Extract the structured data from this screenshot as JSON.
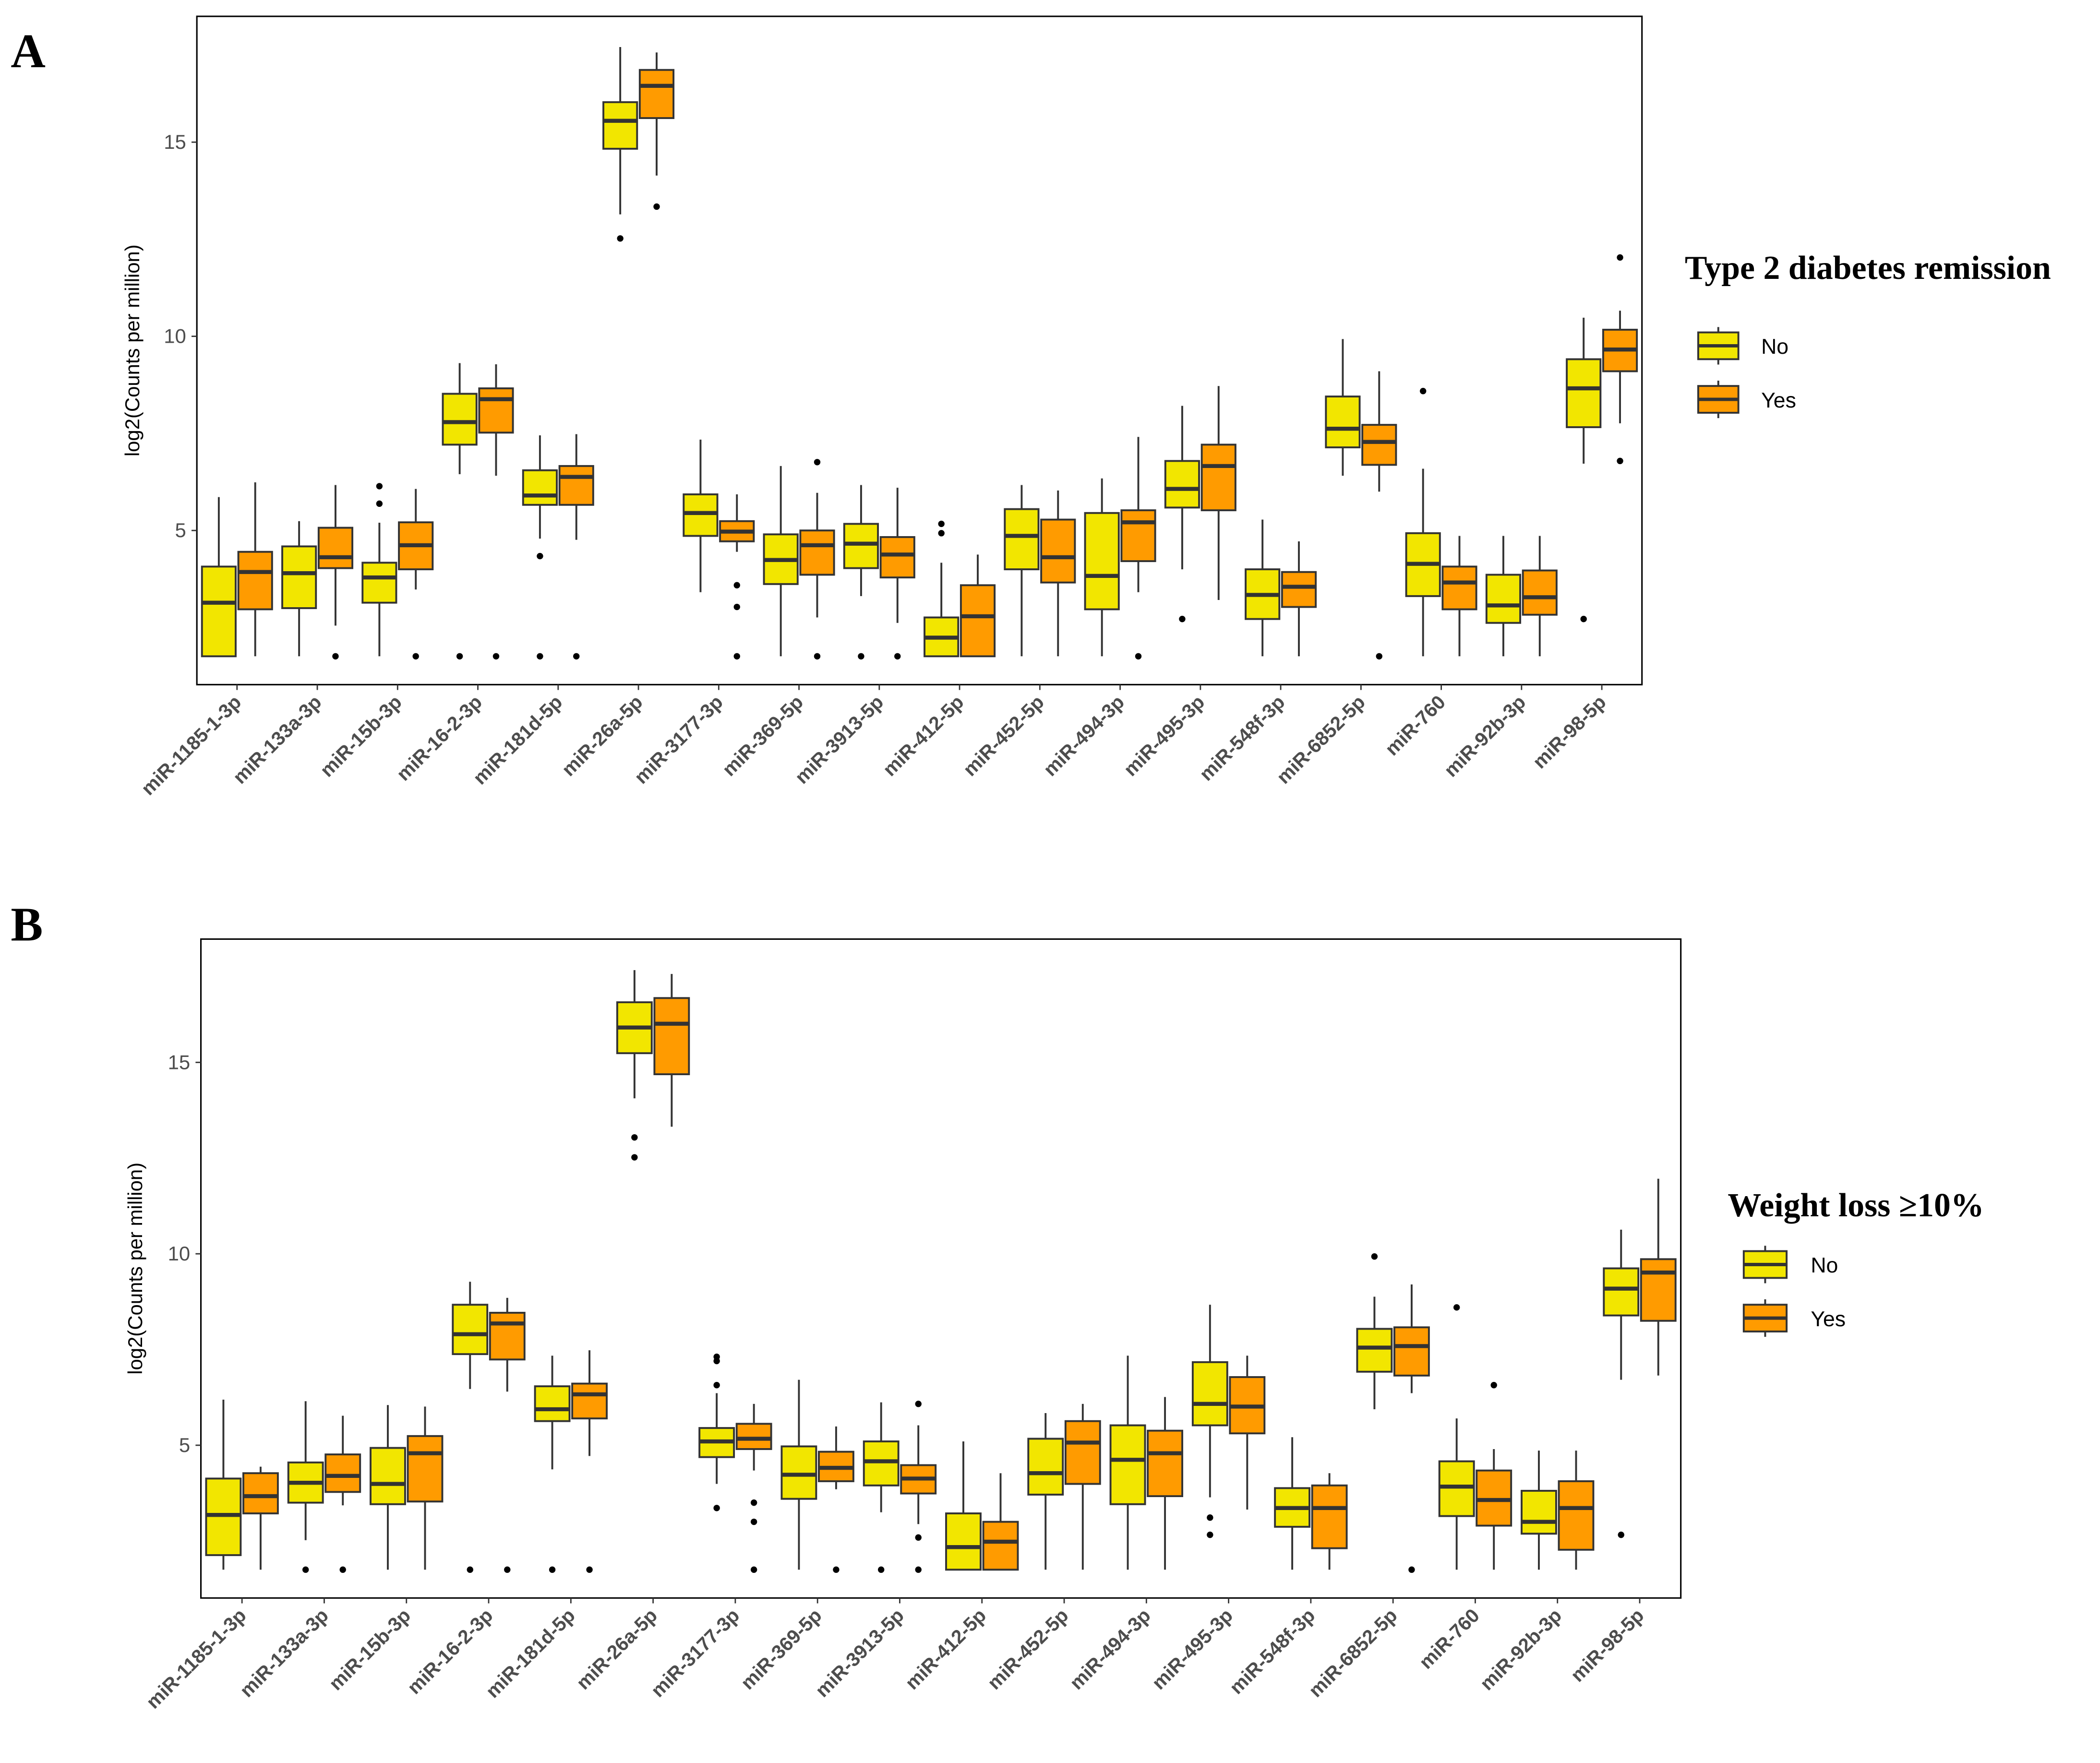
{
  "colors": {
    "No": "#F2E600",
    "Yes": "#FF9B00",
    "stroke": "#333333"
  },
  "chart_data": [
    {
      "type": "box",
      "panel_label": "A",
      "ylabel": "log2(Counts per million)",
      "yticks": [
        5,
        10,
        15
      ],
      "ylim": [
        1.03,
        18.24
      ],
      "legend": {
        "title": "Type 2 diabetes remission",
        "entries": [
          "No",
          "Yes"
        ],
        "position": "right"
      },
      "categories": [
        {
          "name": "miR-1185-1-3p",
          "No": {
            "min": 1.76,
            "q1": 1.76,
            "median": 3.14,
            "q3": 4.07,
            "max": 5.86,
            "outliers": []
          },
          "Yes": {
            "min": 1.76,
            "q1": 2.97,
            "median": 3.93,
            "q3": 4.45,
            "max": 6.24,
            "outliers": []
          }
        },
        {
          "name": "miR-133a-3p",
          "No": {
            "min": 1.76,
            "q1": 3.0,
            "median": 3.9,
            "q3": 4.59,
            "max": 5.24,
            "outliers": []
          },
          "Yes": {
            "min": 2.55,
            "q1": 4.03,
            "median": 4.31,
            "q3": 5.07,
            "max": 6.17,
            "outliers": [
              1.76
            ]
          }
        },
        {
          "name": "miR-15b-3p",
          "No": {
            "min": 1.76,
            "q1": 3.14,
            "median": 3.79,
            "q3": 4.17,
            "max": 5.2,
            "outliers": [
              6.14,
              5.69
            ]
          },
          "Yes": {
            "min": 3.48,
            "q1": 4.0,
            "median": 4.62,
            "q3": 5.21,
            "max": 6.07,
            "outliers": [
              1.76
            ]
          }
        },
        {
          "name": "miR-16-2-3p",
          "No": {
            "min": 6.45,
            "q1": 7.21,
            "median": 7.79,
            "q3": 8.52,
            "max": 9.31,
            "outliers": [
              1.76
            ]
          },
          "Yes": {
            "min": 6.41,
            "q1": 7.52,
            "median": 8.38,
            "q3": 8.66,
            "max": 9.28,
            "outliers": [
              1.76
            ]
          }
        },
        {
          "name": "miR-181d-5p",
          "No": {
            "min": 4.79,
            "q1": 5.66,
            "median": 5.9,
            "q3": 6.55,
            "max": 7.45,
            "outliers": [
              4.34,
              1.76
            ]
          },
          "Yes": {
            "min": 4.76,
            "q1": 5.66,
            "median": 6.38,
            "q3": 6.66,
            "max": 7.48,
            "outliers": [
              1.76
            ]
          }
        },
        {
          "name": "miR-26a-5p",
          "No": {
            "min": 13.14,
            "q1": 14.83,
            "median": 15.55,
            "q3": 16.03,
            "max": 17.45,
            "outliers": [
              12.52
            ]
          },
          "Yes": {
            "min": 14.14,
            "q1": 15.62,
            "median": 16.45,
            "q3": 16.86,
            "max": 17.31,
            "outliers": [
              13.34
            ]
          }
        },
        {
          "name": "miR-3177-3p",
          "No": {
            "min": 3.41,
            "q1": 4.86,
            "median": 5.45,
            "q3": 5.93,
            "max": 7.34,
            "outliers": []
          },
          "Yes": {
            "min": 4.45,
            "q1": 4.72,
            "median": 4.97,
            "q3": 5.24,
            "max": 5.93,
            "outliers": [
              3.59,
              3.03,
              1.76
            ]
          }
        },
        {
          "name": "miR-369-5p",
          "No": {
            "min": 1.76,
            "q1": 3.62,
            "median": 4.24,
            "q3": 4.9,
            "max": 6.66,
            "outliers": []
          },
          "Yes": {
            "min": 2.76,
            "q1": 3.86,
            "median": 4.62,
            "q3": 5.0,
            "max": 5.97,
            "outliers": [
              6.76,
              1.76
            ]
          }
        },
        {
          "name": "miR-3913-5p",
          "No": {
            "min": 3.31,
            "q1": 4.03,
            "median": 4.66,
            "q3": 5.17,
            "max": 6.17,
            "outliers": [
              1.76
            ]
          },
          "Yes": {
            "min": 2.62,
            "q1": 3.79,
            "median": 4.38,
            "q3": 4.83,
            "max": 6.1,
            "outliers": [
              1.76
            ]
          }
        },
        {
          "name": "miR-412-5p",
          "No": {
            "min": 1.76,
            "q1": 1.76,
            "median": 2.24,
            "q3": 2.76,
            "max": 4.17,
            "outliers": [
              5.17,
              4.93
            ]
          },
          "Yes": {
            "min": 1.76,
            "q1": 1.76,
            "median": 2.79,
            "q3": 3.59,
            "max": 4.38,
            "outliers": []
          }
        },
        {
          "name": "miR-452-5p",
          "No": {
            "min": 1.76,
            "q1": 4.0,
            "median": 4.86,
            "q3": 5.55,
            "max": 6.17,
            "outliers": []
          },
          "Yes": {
            "min": 1.76,
            "q1": 3.66,
            "median": 4.31,
            "q3": 5.28,
            "max": 6.03,
            "outliers": []
          }
        },
        {
          "name": "miR-494-3p",
          "No": {
            "min": 1.76,
            "q1": 2.97,
            "median": 3.83,
            "q3": 5.45,
            "max": 6.34,
            "outliers": []
          },
          "Yes": {
            "min": 3.41,
            "q1": 4.21,
            "median": 5.21,
            "q3": 5.52,
            "max": 7.41,
            "outliers": [
              1.76
            ]
          }
        },
        {
          "name": "miR-495-3p",
          "No": {
            "min": 4.0,
            "q1": 5.59,
            "median": 6.07,
            "q3": 6.79,
            "max": 8.21,
            "outliers": [
              2.72
            ]
          },
          "Yes": {
            "min": 3.21,
            "q1": 5.52,
            "median": 6.66,
            "q3": 7.21,
            "max": 8.72,
            "outliers": []
          }
        },
        {
          "name": "miR-548f-3p",
          "No": {
            "min": 1.76,
            "q1": 2.72,
            "median": 3.34,
            "q3": 4.0,
            "max": 5.28,
            "outliers": []
          },
          "Yes": {
            "min": 1.76,
            "q1": 3.03,
            "median": 3.55,
            "q3": 3.93,
            "max": 4.72,
            "outliers": []
          }
        },
        {
          "name": "miR-6852-5p",
          "No": {
            "min": 6.41,
            "q1": 7.14,
            "median": 7.62,
            "q3": 8.45,
            "max": 9.93,
            "outliers": []
          },
          "Yes": {
            "min": 6.0,
            "q1": 6.69,
            "median": 7.28,
            "q3": 7.72,
            "max": 9.1,
            "outliers": [
              1.76
            ]
          }
        },
        {
          "name": "miR-760",
          "No": {
            "min": 1.76,
            "q1": 3.31,
            "median": 4.14,
            "q3": 4.93,
            "max": 6.59,
            "outliers": [
              8.59
            ]
          },
          "Yes": {
            "min": 1.76,
            "q1": 2.97,
            "median": 3.66,
            "q3": 4.07,
            "max": 4.86,
            "outliers": []
          }
        },
        {
          "name": "miR-92b-3p",
          "No": {
            "min": 1.76,
            "q1": 2.62,
            "median": 3.07,
            "q3": 3.86,
            "max": 4.86,
            "outliers": []
          },
          "Yes": {
            "min": 1.76,
            "q1": 2.83,
            "median": 3.28,
            "q3": 3.97,
            "max": 4.86,
            "outliers": []
          }
        },
        {
          "name": "miR-98-5p",
          "No": {
            "min": 6.72,
            "q1": 7.66,
            "median": 8.66,
            "q3": 9.41,
            "max": 10.48,
            "outliers": [
              2.72
            ]
          },
          "Yes": {
            "min": 7.76,
            "q1": 9.1,
            "median": 9.66,
            "q3": 10.17,
            "max": 10.66,
            "outliers": [
              12.03,
              6.79
            ]
          }
        }
      ]
    },
    {
      "type": "box",
      "panel_label": "B",
      "ylabel": "log2(Counts per million)",
      "yticks": [
        5,
        10,
        15
      ],
      "ylim": [
        1.01,
        18.22
      ],
      "legend": {
        "title": "Weight loss ≥10%",
        "entries": [
          "No",
          "Yes"
        ],
        "position": "right"
      },
      "categories": [
        {
          "name": "miR-1185-1-3p",
          "No": {
            "min": 1.75,
            "q1": 2.13,
            "median": 3.18,
            "q3": 4.13,
            "max": 6.19,
            "outliers": []
          },
          "Yes": {
            "min": 1.75,
            "q1": 3.22,
            "median": 3.67,
            "q3": 4.27,
            "max": 4.44,
            "outliers": []
          }
        },
        {
          "name": "miR-133a-3p",
          "No": {
            "min": 2.52,
            "q1": 3.5,
            "median": 4.02,
            "q3": 4.55,
            "max": 6.15,
            "outliers": [
              1.75
            ]
          },
          "Yes": {
            "min": 3.43,
            "q1": 3.78,
            "median": 4.2,
            "q3": 4.76,
            "max": 5.77,
            "outliers": [
              1.75
            ]
          }
        },
        {
          "name": "miR-15b-3p",
          "No": {
            "min": 1.75,
            "q1": 3.46,
            "median": 3.99,
            "q3": 4.93,
            "max": 6.05,
            "outliers": []
          },
          "Yes": {
            "min": 1.75,
            "q1": 3.53,
            "median": 4.79,
            "q3": 5.24,
            "max": 6.01,
            "outliers": []
          }
        },
        {
          "name": "miR-16-2-3p",
          "No": {
            "min": 6.47,
            "q1": 7.38,
            "median": 7.9,
            "q3": 8.67,
            "max": 9.27,
            "outliers": [
              1.75
            ]
          },
          "Yes": {
            "min": 6.4,
            "q1": 7.24,
            "median": 8.18,
            "q3": 8.46,
            "max": 8.85,
            "outliers": [
              1.75
            ]
          }
        },
        {
          "name": "miR-181d-5p",
          "No": {
            "min": 4.37,
            "q1": 5.63,
            "median": 5.94,
            "q3": 6.54,
            "max": 7.34,
            "outliers": [
              1.75
            ]
          },
          "Yes": {
            "min": 4.72,
            "q1": 5.7,
            "median": 6.33,
            "q3": 6.61,
            "max": 7.48,
            "outliers": [
              1.75
            ]
          }
        },
        {
          "name": "miR-26a-5p",
          "No": {
            "min": 14.06,
            "q1": 15.24,
            "median": 15.91,
            "q3": 16.57,
            "max": 17.41,
            "outliers": [
              13.04,
              12.52
            ]
          },
          "Yes": {
            "min": 13.32,
            "q1": 14.69,
            "median": 16.01,
            "q3": 16.68,
            "max": 17.31,
            "outliers": []
          }
        },
        {
          "name": "miR-3177-3p",
          "No": {
            "min": 3.99,
            "q1": 4.69,
            "median": 5.1,
            "q3": 5.45,
            "max": 6.36,
            "outliers": [
              7.31,
              7.2,
              6.57,
              3.36
            ]
          },
          "Yes": {
            "min": 4.34,
            "q1": 4.9,
            "median": 5.17,
            "q3": 5.56,
            "max": 6.08,
            "outliers": [
              3.5,
              3.0,
              1.75
            ]
          }
        },
        {
          "name": "miR-369-5p",
          "No": {
            "min": 1.75,
            "q1": 3.6,
            "median": 4.23,
            "q3": 4.97,
            "max": 6.71,
            "outliers": []
          },
          "Yes": {
            "min": 3.85,
            "q1": 4.06,
            "median": 4.41,
            "q3": 4.83,
            "max": 5.49,
            "outliers": [
              1.75
            ]
          }
        },
        {
          "name": "miR-3913-5p",
          "No": {
            "min": 3.25,
            "q1": 3.95,
            "median": 4.58,
            "q3": 5.1,
            "max": 6.12,
            "outliers": [
              1.75
            ]
          },
          "Yes": {
            "min": 2.94,
            "q1": 3.74,
            "median": 4.13,
            "q3": 4.48,
            "max": 5.52,
            "outliers": [
              6.08,
              2.59,
              1.75
            ]
          }
        },
        {
          "name": "miR-412-5p",
          "No": {
            "min": 1.75,
            "q1": 1.75,
            "median": 2.34,
            "q3": 3.22,
            "max": 5.1,
            "outliers": []
          },
          "Yes": {
            "min": 1.75,
            "q1": 1.75,
            "median": 2.48,
            "q3": 3.0,
            "max": 4.27,
            "outliers": []
          }
        },
        {
          "name": "miR-452-5p",
          "No": {
            "min": 1.75,
            "q1": 3.71,
            "median": 4.27,
            "q3": 5.17,
            "max": 5.84,
            "outliers": []
          },
          "Yes": {
            "min": 1.75,
            "q1": 3.99,
            "median": 5.07,
            "q3": 5.63,
            "max": 6.08,
            "outliers": []
          }
        },
        {
          "name": "miR-494-3p",
          "No": {
            "min": 1.75,
            "q1": 3.46,
            "median": 4.62,
            "q3": 5.52,
            "max": 7.34,
            "outliers": []
          },
          "Yes": {
            "min": 1.75,
            "q1": 3.67,
            "median": 4.79,
            "q3": 5.38,
            "max": 6.26,
            "outliers": []
          }
        },
        {
          "name": "miR-495-3p",
          "No": {
            "min": 3.64,
            "q1": 5.52,
            "median": 6.08,
            "q3": 7.17,
            "max": 8.67,
            "outliers": [
              3.11,
              2.66
            ]
          },
          "Yes": {
            "min": 3.32,
            "q1": 5.31,
            "median": 6.01,
            "q3": 6.78,
            "max": 7.34,
            "outliers": []
          }
        },
        {
          "name": "miR-548f-3p",
          "No": {
            "min": 1.75,
            "q1": 2.87,
            "median": 3.36,
            "q3": 3.88,
            "max": 5.21,
            "outliers": []
          },
          "Yes": {
            "min": 1.75,
            "q1": 2.31,
            "median": 3.36,
            "q3": 3.95,
            "max": 4.27,
            "outliers": []
          }
        },
        {
          "name": "miR-6852-5p",
          "No": {
            "min": 5.94,
            "q1": 6.92,
            "median": 7.55,
            "q3": 8.04,
            "max": 8.88,
            "outliers": [
              9.93
            ]
          },
          "Yes": {
            "min": 6.36,
            "q1": 6.82,
            "median": 7.59,
            "q3": 8.08,
            "max": 9.2,
            "outliers": [
              1.75
            ]
          }
        },
        {
          "name": "miR-760",
          "No": {
            "min": 1.75,
            "q1": 3.15,
            "median": 3.92,
            "q3": 4.58,
            "max": 5.7,
            "outliers": [
              8.6
            ]
          },
          "Yes": {
            "min": 1.75,
            "q1": 2.9,
            "median": 3.57,
            "q3": 4.34,
            "max": 4.9,
            "outliers": [
              6.57
            ]
          }
        },
        {
          "name": "miR-92b-3p",
          "No": {
            "min": 1.75,
            "q1": 2.69,
            "median": 3.0,
            "q3": 3.81,
            "max": 4.86,
            "outliers": []
          },
          "Yes": {
            "min": 1.75,
            "q1": 2.27,
            "median": 3.36,
            "q3": 4.06,
            "max": 4.86,
            "outliers": []
          }
        },
        {
          "name": "miR-98-5p",
          "No": {
            "min": 6.71,
            "q1": 8.39,
            "median": 9.09,
            "q3": 9.62,
            "max": 10.63,
            "outliers": [
              2.66
            ]
          },
          "Yes": {
            "min": 6.82,
            "q1": 8.25,
            "median": 9.51,
            "q3": 9.86,
            "max": 11.96,
            "outliers": []
          }
        }
      ]
    }
  ]
}
